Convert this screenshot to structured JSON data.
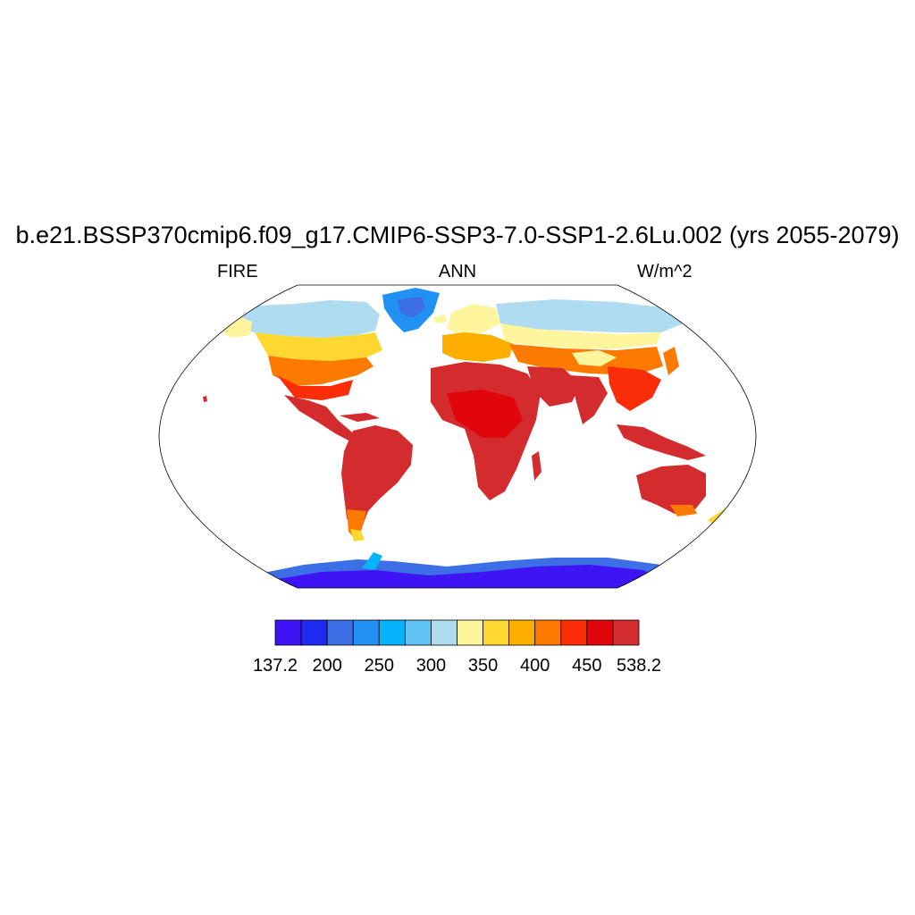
{
  "title": "b.e21.BSSP370cmip6.f09_g17.CMIP6-SSP3-7.0-SSP1-2.6Lu.002 (yrs 2055-2079)",
  "left_label": "FIRE",
  "center_label": "ANN",
  "right_label": "W/m^2",
  "colorbar": {
    "colors": [
      "#3e14f4",
      "#1e2af0",
      "#3c6ee6",
      "#2291f5",
      "#06b4fb",
      "#5ec2f4",
      "#b0dcf2",
      "#fff59c",
      "#fed830",
      "#fdae00",
      "#fd7a00",
      "#fc2e0a",
      "#e0060c",
      "#d42c2e"
    ],
    "labels": [
      {
        "text": "137.2",
        "at": 0
      },
      {
        "text": "200",
        "at": 1
      },
      {
        "text": "250",
        "at": 2
      },
      {
        "text": "300",
        "at": 3
      },
      {
        "text": "350",
        "at": 4
      },
      {
        "text": "400",
        "at": 5
      },
      {
        "text": "450",
        "at": 6
      },
      {
        "text": "538.2",
        "at": 7
      }
    ]
  },
  "map": {
    "projection": "robinson",
    "ocean_color": "#ffffff",
    "outline_color": "#000000"
  }
}
